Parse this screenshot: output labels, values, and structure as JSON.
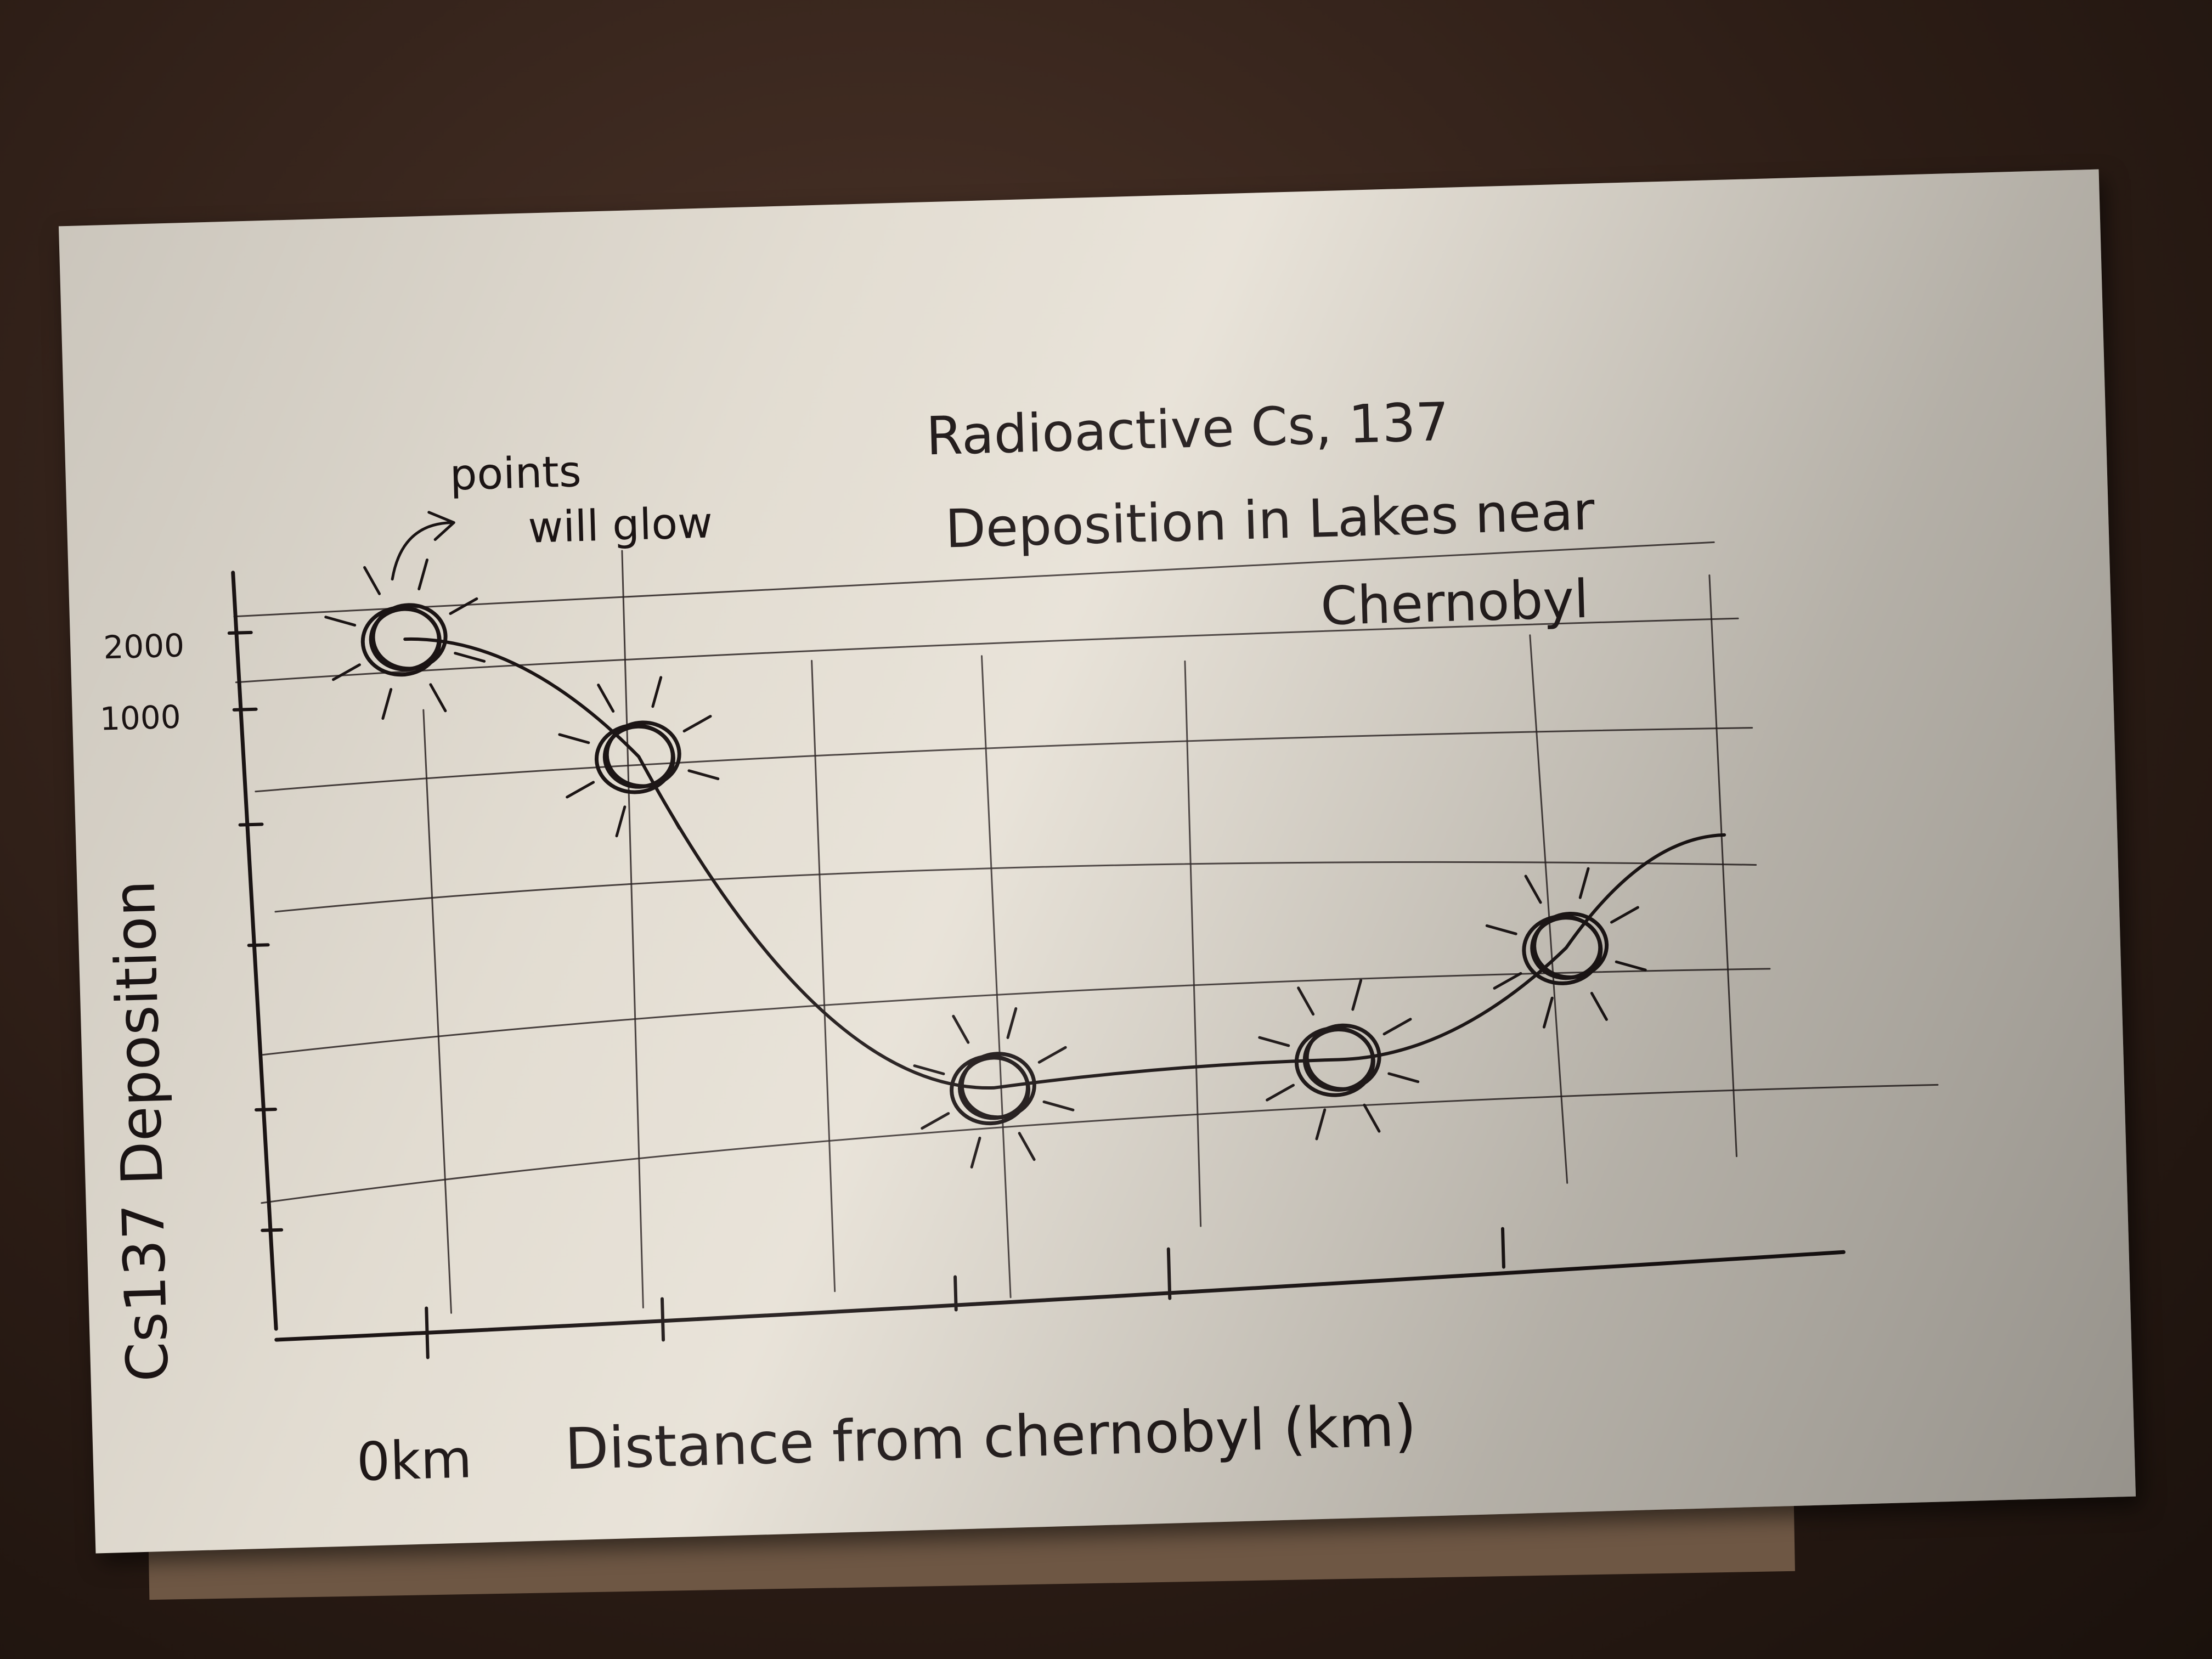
{
  "chart_data": {
    "type": "line",
    "title": "Radioactive Cs, 137 Deposition in Lakes near Chernobyl",
    "title_lines": [
      "Radioactive Cs, 137",
      "Deposition in Lakes near",
      "Chernobyl"
    ],
    "xlabel": "Distance from chernobyl (km)",
    "x_tick_label": "0km",
    "ylabel": "Cs137 Deposition",
    "y_tick_labels": [
      "2000",
      "1000"
    ],
    "annotation": "points will glow",
    "annotation_lines": [
      "points",
      "will glow"
    ],
    "grid": true,
    "series": [
      {
        "values": [
          2000,
          1600,
          500,
          560,
          900
        ]
      }
    ],
    "points_x": [
      0,
      1,
      2.5,
      4,
      5
    ],
    "trailing_line_end": {
      "x": 5.7,
      "y": 1250
    }
  },
  "colors": {
    "paper": "#e7e1d6",
    "ink": "#1c1515",
    "table": "#2b1c15"
  }
}
